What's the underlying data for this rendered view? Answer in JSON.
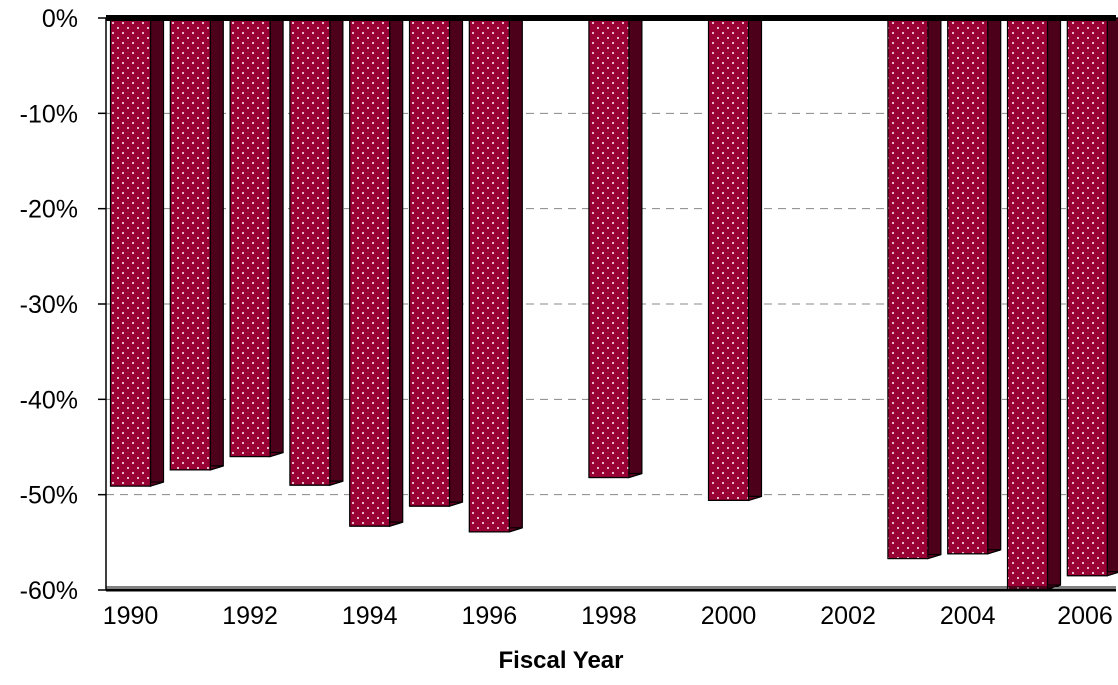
{
  "chart_data": {
    "type": "bar",
    "title": "",
    "xlabel": "Fiscal Year",
    "ylabel": "",
    "ylim": [
      -60,
      0
    ],
    "y_tick_labels": [
      "0%",
      "-10%",
      "-20%",
      "-30%",
      "-40%",
      "-50%",
      "-60%"
    ],
    "y_ticks": [
      0,
      -10,
      -20,
      -30,
      -40,
      -50,
      -60
    ],
    "x_tick_labels": [
      "1990",
      "1992",
      "1994",
      "1996",
      "1998",
      "2000",
      "2002",
      "2004",
      "2006"
    ],
    "categories": [
      "1990",
      "1991",
      "1992",
      "1993",
      "1994",
      "1995",
      "1996",
      "1997",
      "1998",
      "1999",
      "2000",
      "2001",
      "2002",
      "2003",
      "2004",
      "2005",
      "2006"
    ],
    "values": [
      -49.1,
      -47.4,
      -46.0,
      -49.0,
      -53.3,
      -51.2,
      -53.9,
      null,
      -48.2,
      null,
      -50.6,
      null,
      null,
      -56.7,
      -56.2,
      -59.9,
      -58.5
    ],
    "grid": true,
    "colors": {
      "bar_front": "#990033",
      "bar_side": "#4d001a",
      "bar_top": "#660022",
      "dot": "#f2ccd6"
    }
  }
}
